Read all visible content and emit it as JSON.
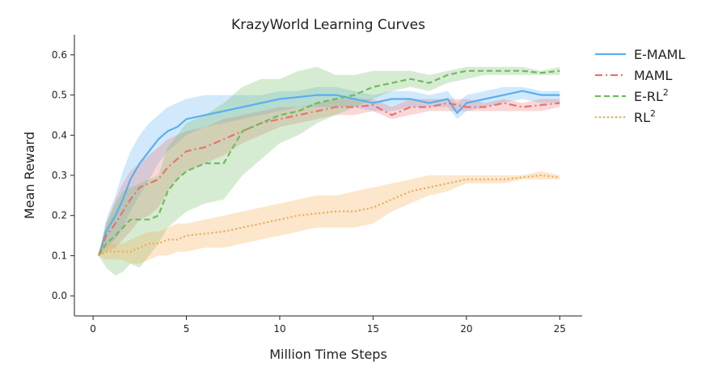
{
  "chart_data": {
    "type": "line",
    "title": "KrazyWorld Learning Curves",
    "xlabel": "Million Time Steps",
    "ylabel": "Mean Reward",
    "xlim": [
      -1,
      26.2
    ],
    "ylim": [
      -0.05,
      0.65
    ],
    "xticks": [
      0,
      5,
      10,
      15,
      20,
      25
    ],
    "yticks": [
      0.0,
      0.1,
      0.2,
      0.3,
      0.4,
      0.5,
      0.6
    ],
    "xtick_labels": [
      "0",
      "5",
      "10",
      "15",
      "20",
      "25"
    ],
    "ytick_labels": [
      "0.0",
      "0.1",
      "0.2",
      "0.3",
      "0.4",
      "0.5",
      "0.6"
    ],
    "grid": false,
    "legend_position": "top-right outside",
    "series": [
      {
        "name": "E-MAML",
        "legend_base": "E-MAML",
        "legend_sup": "",
        "color": "#5aaff0",
        "dash": "solid",
        "x": [
          0.3,
          0.7,
          1.2,
          1.6,
          2.0,
          2.5,
          3.0,
          3.5,
          4.0,
          4.5,
          5.0,
          6.0,
          7.0,
          8.0,
          9.0,
          10.0,
          11.0,
          12.0,
          13.0,
          14.0,
          15.0,
          16.0,
          17.0,
          18.0,
          19.0,
          19.5,
          20.0,
          21.0,
          22.0,
          23.0,
          24.0,
          25.0
        ],
        "y": [
          0.1,
          0.16,
          0.2,
          0.24,
          0.29,
          0.33,
          0.36,
          0.39,
          0.41,
          0.42,
          0.44,
          0.45,
          0.46,
          0.47,
          0.48,
          0.49,
          0.495,
          0.5,
          0.5,
          0.49,
          0.48,
          0.49,
          0.49,
          0.48,
          0.49,
          0.455,
          0.48,
          0.49,
          0.5,
          0.51,
          0.5,
          0.5
        ],
        "band_low": [
          0.1,
          0.12,
          0.14,
          0.17,
          0.21,
          0.25,
          0.29,
          0.33,
          0.36,
          0.38,
          0.4,
          0.42,
          0.43,
          0.44,
          0.45,
          0.46,
          0.47,
          0.47,
          0.47,
          0.47,
          0.46,
          0.46,
          0.47,
          0.47,
          0.47,
          0.44,
          0.46,
          0.47,
          0.48,
          0.49,
          0.48,
          0.48
        ],
        "band_high": [
          0.1,
          0.19,
          0.25,
          0.31,
          0.36,
          0.4,
          0.43,
          0.45,
          0.47,
          0.48,
          0.49,
          0.5,
          0.5,
          0.5,
          0.5,
          0.51,
          0.51,
          0.52,
          0.52,
          0.51,
          0.5,
          0.51,
          0.51,
          0.5,
          0.51,
          0.48,
          0.5,
          0.51,
          0.52,
          0.52,
          0.51,
          0.51
        ]
      },
      {
        "name": "MAML",
        "legend_base": "MAML",
        "legend_sup": "",
        "color": "#e8736f",
        "dash": "dashdot",
        "x": [
          0.3,
          0.7,
          1.2,
          1.6,
          2.0,
          2.5,
          3.0,
          3.5,
          4.0,
          4.5,
          5.0,
          6.0,
          7.0,
          8.0,
          9.0,
          10.0,
          11.0,
          12.0,
          13.0,
          14.0,
          15.0,
          16.0,
          17.0,
          18.0,
          19.0,
          20.0,
          21.0,
          22.0,
          23.0,
          24.0,
          25.0
        ],
        "y": [
          0.1,
          0.15,
          0.18,
          0.21,
          0.24,
          0.27,
          0.28,
          0.29,
          0.32,
          0.34,
          0.36,
          0.37,
          0.39,
          0.41,
          0.43,
          0.44,
          0.45,
          0.46,
          0.47,
          0.47,
          0.475,
          0.45,
          0.47,
          0.47,
          0.48,
          0.47,
          0.47,
          0.48,
          0.47,
          0.475,
          0.48
        ],
        "band_low": [
          0.1,
          0.11,
          0.12,
          0.14,
          0.16,
          0.19,
          0.2,
          0.22,
          0.26,
          0.29,
          0.31,
          0.33,
          0.35,
          0.38,
          0.4,
          0.42,
          0.43,
          0.44,
          0.45,
          0.45,
          0.46,
          0.44,
          0.45,
          0.46,
          0.46,
          0.46,
          0.46,
          0.46,
          0.46,
          0.46,
          0.47
        ],
        "band_high": [
          0.1,
          0.18,
          0.24,
          0.28,
          0.31,
          0.33,
          0.35,
          0.37,
          0.39,
          0.4,
          0.41,
          0.42,
          0.44,
          0.45,
          0.46,
          0.47,
          0.47,
          0.48,
          0.49,
          0.49,
          0.49,
          0.47,
          0.49,
          0.49,
          0.49,
          0.49,
          0.48,
          0.49,
          0.48,
          0.49,
          0.49
        ]
      },
      {
        "name": "E-RL2",
        "legend_base": "E-RL",
        "legend_sup": "2",
        "color": "#6dbb5e",
        "dash": "dashed",
        "x": [
          0.3,
          0.7,
          1.2,
          1.6,
          2.0,
          2.5,
          3.0,
          3.5,
          4.0,
          4.5,
          5.0,
          6.0,
          7.0,
          8.0,
          9.0,
          10.0,
          11.0,
          12.0,
          13.0,
          14.0,
          15.0,
          16.0,
          17.0,
          18.0,
          19.0,
          20.0,
          21.0,
          22.0,
          23.0,
          24.0,
          25.0
        ],
        "y": [
          0.1,
          0.13,
          0.15,
          0.17,
          0.19,
          0.19,
          0.19,
          0.2,
          0.26,
          0.29,
          0.31,
          0.33,
          0.33,
          0.41,
          0.43,
          0.45,
          0.46,
          0.48,
          0.49,
          0.5,
          0.52,
          0.53,
          0.54,
          0.53,
          0.55,
          0.56,
          0.56,
          0.56,
          0.56,
          0.555,
          0.56
        ],
        "band_low": [
          0.1,
          0.07,
          0.05,
          0.06,
          0.08,
          0.07,
          0.1,
          0.13,
          0.17,
          0.19,
          0.21,
          0.23,
          0.24,
          0.3,
          0.34,
          0.38,
          0.4,
          0.43,
          0.45,
          0.47,
          0.49,
          0.51,
          0.52,
          0.51,
          0.53,
          0.54,
          0.55,
          0.55,
          0.55,
          0.55,
          0.55
        ],
        "band_high": [
          0.1,
          0.18,
          0.23,
          0.26,
          0.27,
          0.28,
          0.29,
          0.3,
          0.37,
          0.4,
          0.43,
          0.45,
          0.48,
          0.52,
          0.54,
          0.54,
          0.56,
          0.57,
          0.55,
          0.55,
          0.56,
          0.56,
          0.56,
          0.55,
          0.56,
          0.57,
          0.57,
          0.57,
          0.57,
          0.56,
          0.57
        ]
      },
      {
        "name": "RL2",
        "legend_base": "RL",
        "legend_sup": "2",
        "color": "#f4a84a",
        "dash": "dotted",
        "x": [
          0.3,
          0.7,
          1.2,
          1.6,
          2.0,
          2.5,
          3.0,
          3.5,
          4.0,
          4.5,
          5.0,
          6.0,
          7.0,
          8.0,
          9.0,
          10.0,
          11.0,
          12.0,
          13.0,
          14.0,
          15.0,
          16.0,
          17.0,
          18.0,
          19.0,
          20.0,
          21.0,
          22.0,
          23.0,
          24.0,
          25.0
        ],
        "y": [
          0.1,
          0.11,
          0.11,
          0.11,
          0.11,
          0.12,
          0.13,
          0.13,
          0.14,
          0.14,
          0.15,
          0.155,
          0.16,
          0.17,
          0.18,
          0.19,
          0.2,
          0.205,
          0.21,
          0.21,
          0.22,
          0.24,
          0.26,
          0.27,
          0.28,
          0.29,
          0.29,
          0.29,
          0.295,
          0.3,
          0.295
        ],
        "band_low": [
          0.1,
          0.09,
          0.09,
          0.09,
          0.08,
          0.08,
          0.09,
          0.1,
          0.1,
          0.11,
          0.11,
          0.12,
          0.12,
          0.13,
          0.14,
          0.15,
          0.16,
          0.17,
          0.17,
          0.17,
          0.18,
          0.21,
          0.23,
          0.25,
          0.26,
          0.28,
          0.28,
          0.28,
          0.29,
          0.29,
          0.29
        ],
        "band_high": [
          0.1,
          0.13,
          0.13,
          0.13,
          0.14,
          0.15,
          0.16,
          0.16,
          0.17,
          0.18,
          0.18,
          0.19,
          0.2,
          0.21,
          0.22,
          0.23,
          0.24,
          0.25,
          0.25,
          0.26,
          0.27,
          0.28,
          0.29,
          0.3,
          0.3,
          0.3,
          0.3,
          0.3,
          0.3,
          0.31,
          0.3
        ]
      }
    ]
  }
}
